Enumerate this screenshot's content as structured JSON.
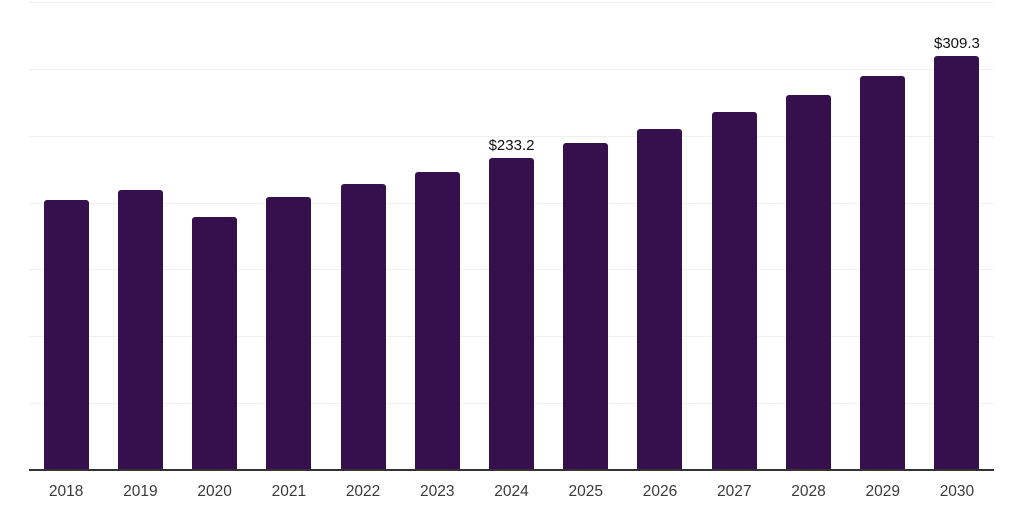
{
  "chart_data": {
    "type": "bar",
    "title": "",
    "xlabel": "",
    "ylabel": "",
    "categories": [
      "2018",
      "2019",
      "2020",
      "2021",
      "2022",
      "2023",
      "2024",
      "2025",
      "2026",
      "2027",
      "2028",
      "2029",
      "2030"
    ],
    "values": [
      202.1,
      209.7,
      189.5,
      204.0,
      213.9,
      223.1,
      233.2,
      244.5,
      255.0,
      267.9,
      280.4,
      294.8,
      309.3
    ],
    "data_labels": [
      "",
      "",
      "",
      "",
      "",
      "",
      "$233.2",
      "",
      "",
      "",
      "",
      "",
      "$309.3"
    ],
    "ylim": [
      0,
      350
    ],
    "gridline_step": 50,
    "grid": true,
    "legend_position": "none",
    "y_tick_labels_visible": false,
    "colors": {
      "bar": "#36104d",
      "gridline": "#f0f0f0",
      "axis_line": "#333333",
      "data_label": "#111111",
      "tick_label": "#3a3a3a",
      "background": "#ffffff"
    }
  }
}
